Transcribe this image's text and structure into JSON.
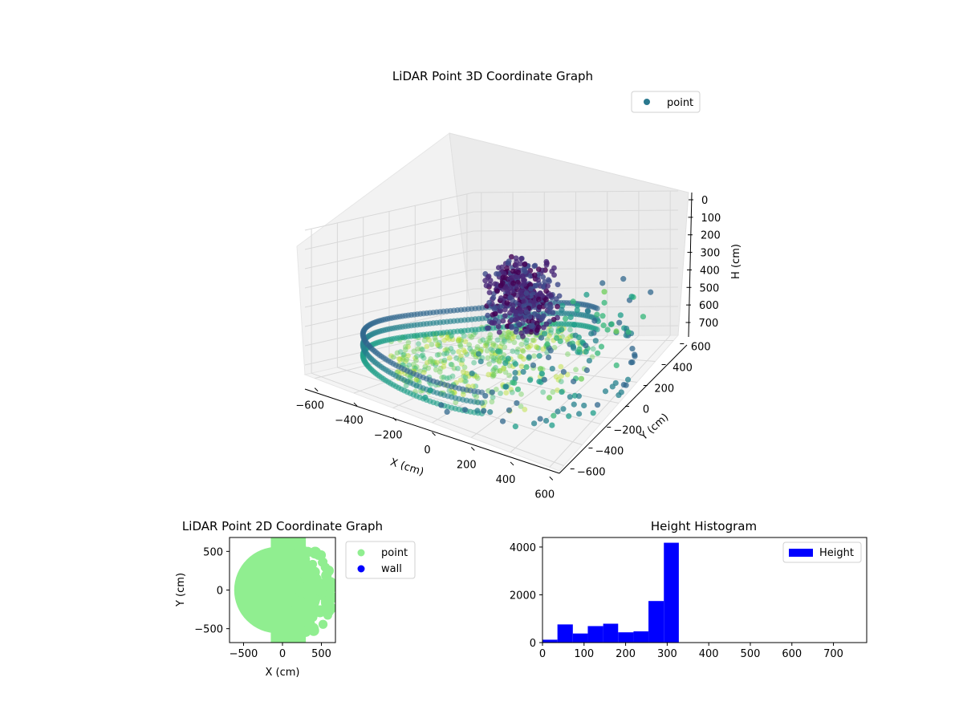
{
  "chart_data": [
    {
      "type": "scatter3d",
      "title": "LiDAR Point 3D Coordinate Graph",
      "xlabel": "X (cm)",
      "ylabel": "Y (cm)",
      "zlabel": "H (cm)",
      "xticks": [
        "−600",
        "−400",
        "−200",
        "0",
        "200",
        "400",
        "600"
      ],
      "yticks": [
        "600",
        "400",
        "200",
        "0",
        "−200",
        "−400",
        "−600"
      ],
      "zticks": [
        "0",
        "100",
        "200",
        "300",
        "400",
        "500",
        "600",
        "700"
      ],
      "xlim": [
        -650,
        650
      ],
      "ylim": [
        -650,
        650
      ],
      "zlim": [
        0,
        750
      ],
      "z_axis_inverted": true,
      "legend": {
        "placement": "top-right",
        "entries": [
          "point"
        ]
      },
      "series": [
        {
          "name": "point",
          "marker_color": "#2a788e",
          "colormap": "viridis",
          "description_values": {
            "outer_ring_radius": 600,
            "outer_ring_height": 700,
            "dense_cluster_center": [
              120,
              40
            ],
            "dense_cluster_height": 320,
            "floor_height_range": [
              550,
              720
            ]
          }
        }
      ]
    },
    {
      "type": "scatter",
      "title": "LiDAR Point 2D Coordinate Graph",
      "xlabel": "X (cm)",
      "ylabel": "Y (cm)",
      "xticks": [
        "−500",
        "0",
        "500"
      ],
      "yticks": [
        "500",
        "0",
        "−500"
      ],
      "xlim": [
        -680,
        680
      ],
      "ylim": [
        -680,
        680
      ],
      "legend": {
        "placement": "outside-right",
        "entries": [
          "point",
          "wall"
        ]
      },
      "series": [
        {
          "name": "point",
          "color": "#90ee90"
        },
        {
          "name": "wall",
          "color": "#0000ff",
          "values": []
        }
      ]
    },
    {
      "type": "bar",
      "title": "Height Histogram",
      "xlabel": "",
      "ylabel": "",
      "xticks": [
        "0",
        "100",
        "200",
        "300",
        "400",
        "500",
        "600",
        "700"
      ],
      "yticks": [
        "0",
        "2000",
        "4000"
      ],
      "xlim": [
        0,
        780
      ],
      "ylim": [
        0,
        4400
      ],
      "legend": {
        "placement": "top-right",
        "entries": [
          "Height"
        ]
      },
      "series": [
        {
          "name": "Height",
          "color": "#0000ff",
          "bins": [
            {
              "x0": 0,
              "x1": 36,
              "value": 120
            },
            {
              "x0": 36,
              "x1": 73,
              "value": 760
            },
            {
              "x0": 73,
              "x1": 109,
              "value": 380
            },
            {
              "x0": 109,
              "x1": 146,
              "value": 690
            },
            {
              "x0": 146,
              "x1": 182,
              "value": 790
            },
            {
              "x0": 182,
              "x1": 219,
              "value": 430
            },
            {
              "x0": 219,
              "x1": 255,
              "value": 470
            },
            {
              "x0": 255,
              "x1": 292,
              "value": 1740
            },
            {
              "x0": 292,
              "x1": 328,
              "value": 4180
            }
          ]
        }
      ]
    }
  ]
}
